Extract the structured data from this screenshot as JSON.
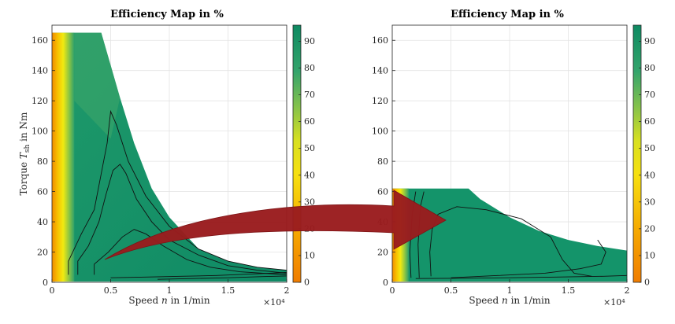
{
  "figure": {
    "title_left": "Efficiency Map in %",
    "title_right": "Efficiency Map in %",
    "xlabel": "Speed n in 1/min",
    "ylabel": "Torque T_sh in Nm",
    "x_exponent": "×10⁴"
  },
  "chart_data": [
    {
      "type": "heatmap",
      "title": "Efficiency Map in %",
      "xlabel": "Speed n in 1/min",
      "ylabel": "Torque T_sh in Nm",
      "xlim": [
        0,
        20000
      ],
      "ylim": [
        0,
        170
      ],
      "x_tick_labels": [
        "0",
        "0.5",
        "1",
        "1.5",
        "2"
      ],
      "y_tick_labels": [
        "0",
        "20",
        "40",
        "60",
        "80",
        "100",
        "120",
        "140",
        "160"
      ],
      "x_ticks": [
        0,
        5000,
        10000,
        15000,
        20000
      ],
      "y_ticks": [
        0,
        20,
        40,
        60,
        80,
        100,
        120,
        140,
        160
      ],
      "colorbar": {
        "range": [
          0,
          96
        ],
        "tick_labels": [
          "0",
          "10",
          "20",
          "30",
          "40",
          "50",
          "60",
          "70",
          "80",
          "90"
        ],
        "ticks": [
          0,
          10,
          20,
          30,
          40,
          50,
          60,
          70,
          80,
          90
        ]
      },
      "envelope": {
        "x": [
          0,
          4200,
          5800,
          7000,
          8500,
          10000,
          12500,
          15000,
          17500,
          20000
        ],
        "y": [
          165,
          165,
          122,
          92,
          62,
          43,
          22,
          14,
          10,
          8
        ]
      },
      "contour_levels": [
        91,
        93,
        95
      ]
    },
    {
      "type": "heatmap",
      "title": "Efficiency Map in %",
      "xlabel": "Speed n in 1/min",
      "ylabel": "",
      "xlim": [
        0,
        20000
      ],
      "ylim": [
        0,
        170
      ],
      "x_tick_labels": [
        "0",
        "0.5",
        "1",
        "1.5",
        "2"
      ],
      "y_tick_labels": [
        "0",
        "20",
        "40",
        "60",
        "80",
        "100",
        "120",
        "140",
        "160"
      ],
      "x_ticks": [
        0,
        5000,
        10000,
        15000,
        20000
      ],
      "y_ticks": [
        0,
        20,
        40,
        60,
        80,
        100,
        120,
        140,
        160
      ],
      "colorbar": {
        "range": [
          0,
          96
        ],
        "tick_labels": [
          "0",
          "10",
          "20",
          "30",
          "40",
          "50",
          "60",
          "70",
          "80",
          "90"
        ],
        "ticks": [
          0,
          10,
          20,
          30,
          40,
          50,
          60,
          70,
          80,
          90
        ]
      },
      "envelope": {
        "x": [
          0,
          6500,
          7500,
          10000,
          12500,
          15000,
          17500,
          20000
        ],
        "y": [
          62,
          62,
          55,
          43,
          34,
          28,
          24,
          21
        ]
      },
      "contour_levels": [
        91,
        93,
        95
      ]
    }
  ]
}
